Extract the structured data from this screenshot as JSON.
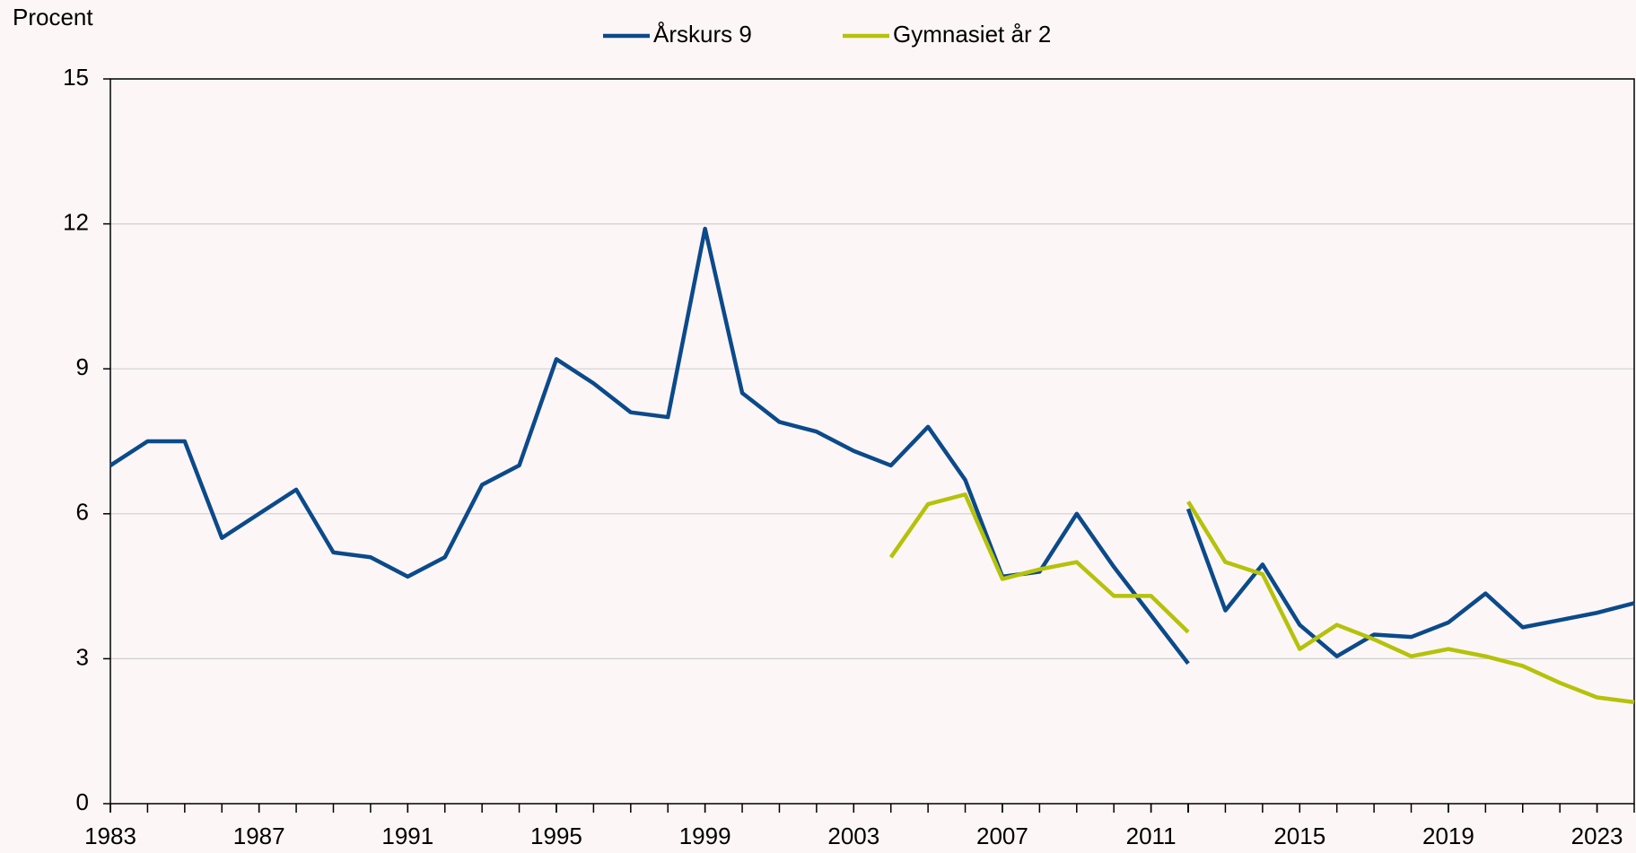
{
  "chart_data": {
    "type": "line",
    "y_label": "Procent",
    "x": [
      1983,
      1984,
      1985,
      1986,
      1987,
      1988,
      1989,
      1990,
      1991,
      1992,
      1993,
      1994,
      1995,
      1996,
      1997,
      1998,
      1999,
      2000,
      2001,
      2002,
      2003,
      2004,
      2005,
      2006,
      2007,
      2008,
      2009,
      2010,
      2011,
      2012,
      2012,
      2012,
      2013,
      2014,
      2015,
      2016,
      2017,
      2018,
      2019,
      2020,
      2021,
      2022,
      2023,
      2024
    ],
    "series": [
      {
        "name": "Årskurs 9",
        "color": "#0b4a8b",
        "values": [
          7.0,
          7.5,
          7.5,
          5.5,
          6.0,
          6.5,
          5.2,
          5.1,
          4.7,
          5.1,
          6.6,
          7.0,
          9.2,
          8.7,
          8.1,
          8.0,
          11.9,
          8.5,
          7.9,
          7.7,
          7.3,
          7.0,
          7.8,
          6.7,
          4.7,
          4.8,
          6.0,
          4.9,
          3.9,
          2.9,
          null,
          6.1,
          4.0,
          4.95,
          3.7,
          3.05,
          3.5,
          3.45,
          3.75,
          4.35,
          3.65,
          3.8,
          3.95,
          4.15
        ]
      },
      {
        "name": "Gymnasiet år 2",
        "color": "#b5c20a",
        "values": [
          null,
          null,
          null,
          null,
          null,
          null,
          null,
          null,
          null,
          null,
          null,
          null,
          null,
          null,
          null,
          null,
          null,
          null,
          null,
          null,
          null,
          5.1,
          6.2,
          6.4,
          4.65,
          4.85,
          5.0,
          4.3,
          4.3,
          3.55,
          null,
          6.25,
          5.0,
          4.75,
          3.2,
          3.7,
          3.4,
          3.05,
          3.2,
          3.05,
          2.85,
          2.5,
          2.2,
          2.1
        ]
      }
    ],
    "xlim": [
      1983,
      2024
    ],
    "xticks": [
      1983,
      1987,
      1991,
      1995,
      1999,
      2003,
      2007,
      2011,
      2015,
      2019,
      2023
    ],
    "ylim": [
      0,
      15
    ],
    "yticks": [
      0,
      3,
      6,
      9,
      12,
      15
    ],
    "grid": true,
    "legend": "top"
  }
}
